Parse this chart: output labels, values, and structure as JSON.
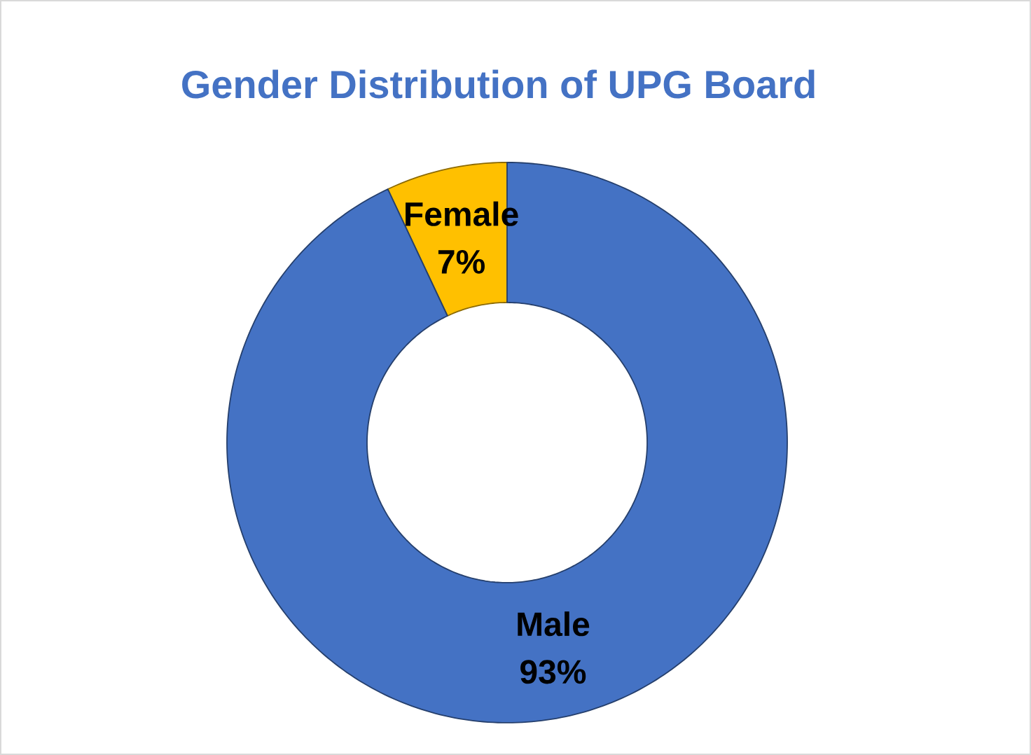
{
  "chart_data": {
    "type": "donut",
    "title": "Gender Distribution of UPG Board",
    "categories": [
      "Female",
      "Male"
    ],
    "values": [
      7,
      93
    ],
    "colors": [
      "#ffc000",
      "#4472c4"
    ],
    "value_labels": [
      "7%",
      "93%"
    ]
  }
}
